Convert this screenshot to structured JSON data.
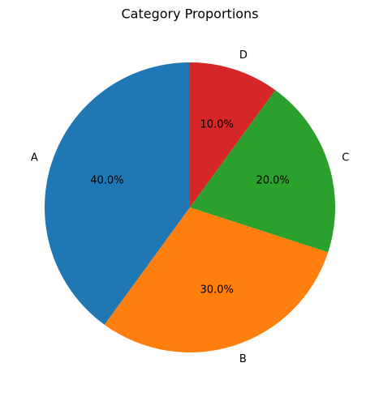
{
  "chart_data": {
    "type": "pie",
    "title": "Category Proportions",
    "categories": [
      "A",
      "B",
      "C",
      "D"
    ],
    "values": [
      40,
      30,
      20,
      10
    ],
    "value_labels": [
      "40.0%",
      "30.0%",
      "20.0%",
      "10.0%"
    ],
    "colors": [
      "#1f77b4",
      "#ff7f0e",
      "#2ca02c",
      "#d62728"
    ]
  }
}
